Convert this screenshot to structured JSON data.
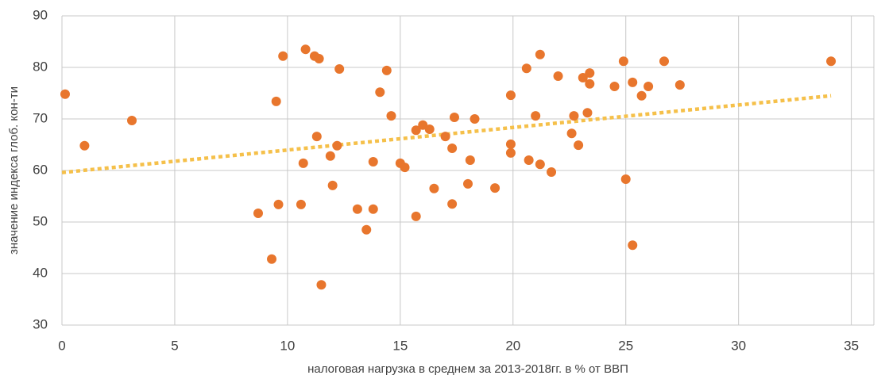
{
  "chart_data": {
    "type": "scatter",
    "xlabel": "налоговая нагрузка в среднем за 2013-2018гг. в % от ВВП",
    "ylabel": "значение индекса глоб. кон-ти",
    "xlim": [
      0,
      36
    ],
    "xticks": [
      0,
      5,
      10,
      15,
      20,
      25,
      30,
      35
    ],
    "ylim": [
      30,
      90
    ],
    "yticks": [
      30,
      40,
      50,
      60,
      70,
      80,
      90
    ],
    "grid": true,
    "series": [
      {
        "color": "#e8762d",
        "x": [
          0.14,
          1.0,
          3.1,
          8.7,
          9.3,
          9.5,
          9.6,
          9.8,
          10.6,
          10.7,
          10.8,
          11.2,
          11.3,
          11.4,
          11.5,
          11.9,
          12.0,
          12.2,
          12.3,
          13.1,
          13.5,
          13.8,
          13.8,
          14.1,
          14.4,
          14.6,
          15.0,
          15.2,
          15.7,
          15.7,
          16.0,
          16.3,
          16.5,
          17.0,
          17.3,
          17.3,
          17.4,
          18.0,
          18.1,
          18.3,
          19.2,
          19.9,
          19.9,
          19.9,
          20.6,
          20.7,
          21.0,
          21.2,
          21.2,
          21.7,
          22.0,
          22.6,
          22.7,
          22.9,
          23.1,
          23.3,
          23.4,
          23.4,
          24.5,
          24.9,
          25.0,
          25.3,
          25.3,
          25.7,
          26.0,
          26.7,
          27.4,
          34.1
        ],
        "values": [
          74.8,
          64.8,
          69.7,
          51.7,
          42.8,
          73.4,
          53.4,
          82.2,
          53.4,
          61.4,
          83.5,
          82.2,
          66.6,
          81.7,
          37.8,
          62.8,
          57.1,
          64.8,
          79.7,
          52.5,
          48.5,
          61.7,
          52.5,
          75.2,
          79.4,
          70.6,
          61.4,
          60.6,
          51.1,
          67.8,
          68.8,
          68.0,
          56.5,
          66.6,
          53.5,
          64.3,
          70.3,
          57.4,
          62.0,
          70.0,
          56.6,
          74.6,
          65.1,
          63.4,
          79.8,
          62.0,
          70.6,
          61.2,
          82.5,
          59.7,
          78.3,
          67.2,
          70.6,
          64.9,
          78.0,
          71.2,
          78.9,
          76.8,
          76.3,
          81.2,
          58.3,
          77.1,
          45.5,
          74.5,
          76.3,
          81.2,
          76.6,
          81.2
        ]
      }
    ],
    "trendline": {
      "color": "#f5c04a",
      "x": [
        0,
        34.1
      ],
      "values": [
        59.6,
        74.5
      ]
    }
  }
}
